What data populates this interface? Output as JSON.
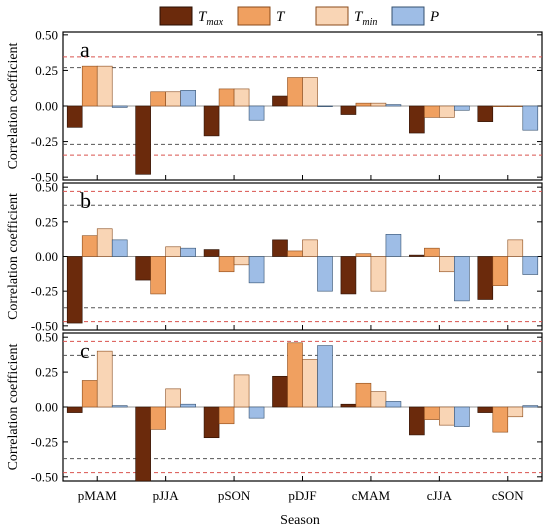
{
  "chart_data": {
    "type": "bar",
    "xlabel": "Season",
    "ylabel": "Correlation coefficient",
    "categories": [
      "pMAM",
      "pJJA",
      "pSON",
      "pDJF",
      "cMAM",
      "cJJA",
      "cSON"
    ],
    "legend": [
      {
        "main": "T",
        "sub": "max",
        "color": "#6b2a0c",
        "border": "#2a0f03"
      },
      {
        "main": "T",
        "sub": "",
        "color": "#f0a060",
        "border": "#8a4a1a"
      },
      {
        "main": "T",
        "sub": "min",
        "color": "#f9d5b5",
        "border": "#8a4a1a"
      },
      {
        "main": "P",
        "sub": "",
        "color": "#9ebde6",
        "border": "#34506f"
      }
    ],
    "y_ticks": [
      "-0.50",
      "-0.25",
      "0.00",
      "0.25",
      "0.50"
    ],
    "panels": [
      {
        "label": "a",
        "ylim": [
          -0.52,
          0.52
        ],
        "ref_lines": {
          "black": [
            0.27,
            -0.27
          ],
          "red": [
            0.345,
            -0.345
          ]
        },
        "series": [
          {
            "name": "Tmax",
            "values": [
              -0.15,
              -0.48,
              -0.21,
              0.07,
              -0.06,
              -0.19,
              -0.11
            ]
          },
          {
            "name": "T",
            "values": [
              0.28,
              0.1,
              0.12,
              0.2,
              0.02,
              -0.08,
              0.0
            ]
          },
          {
            "name": "Tmin",
            "values": [
              0.28,
              0.1,
              0.12,
              0.2,
              0.02,
              -0.08,
              0.0
            ]
          },
          {
            "name": "P",
            "values": [
              -0.01,
              0.11,
              -0.1,
              0.0,
              0.01,
              -0.03,
              -0.17
            ]
          }
        ]
      },
      {
        "label": "b",
        "ylim": [
          -0.53,
          0.53
        ],
        "ref_lines": {
          "black": [
            0.37,
            -0.37
          ],
          "red": [
            0.47,
            -0.47
          ]
        },
        "series": [
          {
            "name": "Tmax",
            "values": [
              -0.48,
              -0.17,
              0.05,
              0.12,
              -0.27,
              0.01,
              -0.31
            ]
          },
          {
            "name": "T",
            "values": [
              0.15,
              -0.27,
              -0.11,
              0.04,
              0.02,
              0.06,
              -0.21
            ]
          },
          {
            "name": "Tmin",
            "values": [
              0.2,
              0.07,
              -0.06,
              0.12,
              -0.25,
              -0.11,
              0.12
            ]
          },
          {
            "name": "P",
            "values": [
              0.12,
              0.06,
              -0.19,
              -0.25,
              0.16,
              -0.32,
              -0.13
            ]
          }
        ]
      },
      {
        "label": "c",
        "ylim": [
          -0.53,
          0.53
        ],
        "ref_lines": {
          "black": [
            0.37,
            -0.37
          ],
          "red": [
            0.47,
            -0.47
          ]
        },
        "series": [
          {
            "name": "Tmax",
            "values": [
              -0.04,
              -0.53,
              -0.22,
              0.22,
              0.02,
              -0.2,
              -0.04
            ]
          },
          {
            "name": "T",
            "values": [
              0.19,
              -0.16,
              -0.12,
              0.46,
              0.17,
              -0.09,
              -0.18
            ]
          },
          {
            "name": "Tmin",
            "values": [
              0.4,
              0.13,
              0.23,
              0.34,
              0.11,
              -0.13,
              -0.07
            ]
          },
          {
            "name": "P",
            "values": [
              0.01,
              0.02,
              -0.08,
              0.44,
              0.04,
              -0.14,
              0.01
            ]
          }
        ]
      }
    ]
  }
}
